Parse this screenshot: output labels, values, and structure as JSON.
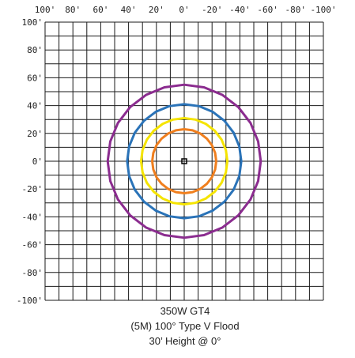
{
  "chart_data": {
    "type": "contour",
    "title_lines": [
      "350W GT4",
      "(5M) 100° Type V Flood",
      "30’ Height @ 0°"
    ],
    "x_tick_labels": [
      "100'",
      "80'",
      "60'",
      "40'",
      "20'",
      "0'",
      "-20'",
      "-40'",
      "-60'",
      "-80'",
      "-100'"
    ],
    "y_tick_labels": [
      "100'",
      "80'",
      "60'",
      "40'",
      "20'",
      "0'",
      "-20'",
      "-40'",
      "-60'",
      "-80'",
      "-100'"
    ],
    "x_range": [
      100,
      -100
    ],
    "y_range": [
      -100,
      100
    ],
    "grid": true,
    "fixture_position": [
      0,
      0
    ],
    "contours": [
      {
        "color": "#8b2c8f",
        "radius_ft": 55
      },
      {
        "color": "#2a73b8",
        "radius_ft": 41
      },
      {
        "color": "#f5e400",
        "radius_ft": 31
      },
      {
        "color": "#f07f1e",
        "radius_ft": 23
      }
    ]
  }
}
